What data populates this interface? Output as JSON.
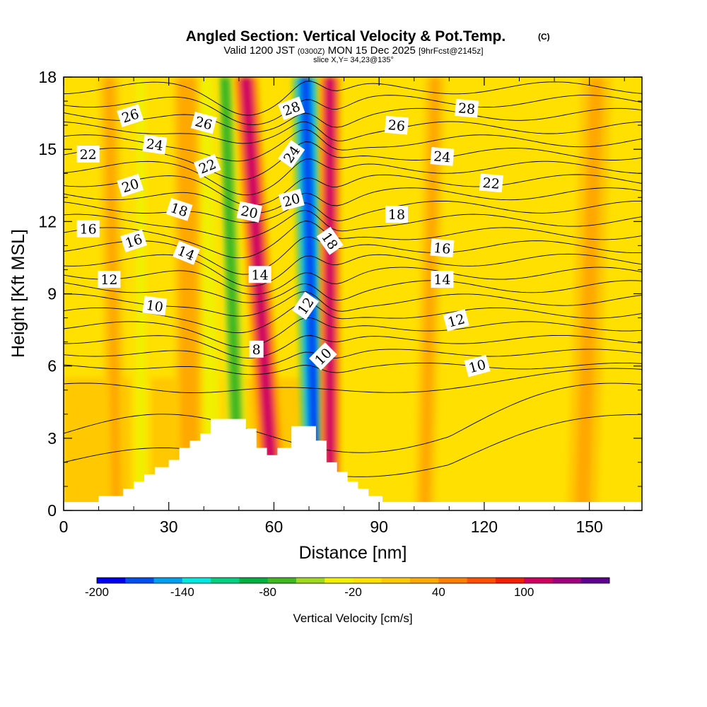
{
  "title": {
    "main": "Angled Section: Vertical Velocity & Pot.Temp.",
    "main_unit": "(C)",
    "valid": "Valid 1200 JST",
    "valid_z": "(0300Z)",
    "date": "MON 15 Dec 2025",
    "fcst": "[9hrFcst@2145z]",
    "slice": "slice X,Y= 34,23@135°"
  },
  "chart_data": {
    "type": "heatmap",
    "xlabel": "Distance [nm]",
    "ylabel": "Height [Kft MSL]",
    "xlim": [
      0,
      165
    ],
    "ylim": [
      0,
      18
    ],
    "xticks": [
      0,
      30,
      60,
      90,
      120,
      150
    ],
    "yticks": [
      0,
      3,
      6,
      9,
      12,
      15,
      18
    ],
    "colorbar": {
      "label": "Vertical Velocity [cm/s]",
      "levels": [
        -200,
        -180,
        -160,
        -140,
        -120,
        -100,
        -80,
        -60,
        -40,
        -20,
        0,
        20,
        40,
        60,
        80,
        100,
        120,
        140
      ],
      "colors": [
        "#0000f0",
        "#0050f0",
        "#00a0f0",
        "#00e8e0",
        "#00d080",
        "#00b040",
        "#40b820",
        "#a0d820",
        "#f0f000",
        "#ffe000",
        "#ffc800",
        "#ffa800",
        "#ff8000",
        "#ff5000",
        "#f02000",
        "#d00060",
        "#a00080",
        "#600090"
      ],
      "tick_labels": [
        "-200",
        "-140",
        "-80",
        "-20",
        "40",
        "100"
      ],
      "tick_values": [
        -200,
        -140,
        -80,
        -20,
        40,
        100
      ]
    },
    "terrain": [
      [
        0,
        0.35
      ],
      [
        10,
        0.35
      ],
      [
        10,
        0.6
      ],
      [
        17,
        0.6
      ],
      [
        17,
        0.9
      ],
      [
        20,
        0.9
      ],
      [
        20,
        1.2
      ],
      [
        23,
        1.2
      ],
      [
        23,
        1.5
      ],
      [
        26,
        1.5
      ],
      [
        26,
        1.8
      ],
      [
        30,
        1.8
      ],
      [
        30,
        2.1
      ],
      [
        33,
        2.1
      ],
      [
        33,
        2.6
      ],
      [
        36,
        2.6
      ],
      [
        36,
        2.9
      ],
      [
        39,
        2.9
      ],
      [
        39,
        3.2
      ],
      [
        42,
        3.2
      ],
      [
        42,
        3.8
      ],
      [
        52,
        3.8
      ],
      [
        52,
        3.4
      ],
      [
        55,
        3.4
      ],
      [
        55,
        2.6
      ],
      [
        58,
        2.6
      ],
      [
        58,
        2.3
      ],
      [
        61,
        2.3
      ],
      [
        61,
        2.6
      ],
      [
        65,
        2.6
      ],
      [
        65,
        3.5
      ],
      [
        72,
        3.5
      ],
      [
        72,
        2.9
      ],
      [
        75,
        2.9
      ],
      [
        75,
        2.0
      ],
      [
        78,
        2.0
      ],
      [
        78,
        1.6
      ],
      [
        81,
        1.6
      ],
      [
        81,
        1.2
      ],
      [
        84,
        1.2
      ],
      [
        84,
        0.9
      ],
      [
        87,
        0.9
      ],
      [
        87,
        0.6
      ],
      [
        91,
        0.6
      ],
      [
        91,
        0.35
      ],
      [
        165,
        0.35
      ]
    ],
    "updrafts": [
      {
        "x_bottom": 60,
        "x_top": 52,
        "value": 100,
        "width": 7
      },
      {
        "x_bottom": 76,
        "x_top": 76,
        "value": 100,
        "width": 6
      },
      {
        "x_bottom": 36,
        "x_top": 35,
        "value": 30,
        "width": 8
      },
      {
        "x_bottom": 15,
        "x_top": 13,
        "value": 20,
        "width": 6
      },
      {
        "x_bottom": 103,
        "x_top": 106,
        "value": 25,
        "width": 6
      },
      {
        "x_bottom": 148,
        "x_top": 152,
        "value": 25,
        "width": 9
      }
    ],
    "downdrafts": [
      {
        "x_bottom": 72,
        "x_top": 69,
        "value": -180,
        "width": 8
      },
      {
        "x_bottom": 50,
        "x_top": 46,
        "value": -80,
        "width": 7
      },
      {
        "x_bottom": 42,
        "x_top": 40,
        "value": -40,
        "width": 8
      },
      {
        "x_bottom": 22,
        "x_top": 22,
        "value": -25,
        "width": 6
      },
      {
        "x_bottom": 95,
        "x_top": 98,
        "value": -15,
        "width": 8
      }
    ],
    "theta_levels": [
      8,
      9,
      10,
      11,
      12,
      13,
      14,
      15,
      16,
      17,
      18,
      19,
      20,
      21,
      22,
      23,
      24,
      25,
      26,
      27,
      28,
      29,
      30
    ],
    "contour_labels": [
      {
        "text": "26",
        "x": 19,
        "y": 16.4,
        "angle": 18
      },
      {
        "text": "26",
        "x": 40,
        "y": 16.1,
        "angle": -15
      },
      {
        "text": "28",
        "x": 65,
        "y": 16.7,
        "angle": 20
      },
      {
        "text": "28",
        "x": 115,
        "y": 16.7,
        "angle": -5
      },
      {
        "text": "26",
        "x": 95,
        "y": 16.0,
        "angle": -5
      },
      {
        "text": "22",
        "x": 7,
        "y": 14.8,
        "angle": 0
      },
      {
        "text": "24",
        "x": 26,
        "y": 15.2,
        "angle": -8
      },
      {
        "text": "24",
        "x": 65,
        "y": 14.8,
        "angle": 55
      },
      {
        "text": "24",
        "x": 108,
        "y": 14.7,
        "angle": -5
      },
      {
        "text": "22",
        "x": 41,
        "y": 14.3,
        "angle": 22
      },
      {
        "text": "22",
        "x": 122,
        "y": 13.6,
        "angle": -5
      },
      {
        "text": "20",
        "x": 19,
        "y": 13.5,
        "angle": 18
      },
      {
        "text": "20",
        "x": 53,
        "y": 12.4,
        "angle": -12
      },
      {
        "text": "20",
        "x": 65,
        "y": 12.9,
        "angle": 15
      },
      {
        "text": "18",
        "x": 33,
        "y": 12.5,
        "angle": -18
      },
      {
        "text": "18",
        "x": 95,
        "y": 12.3,
        "angle": 0
      },
      {
        "text": "18",
        "x": 76,
        "y": 11.2,
        "angle": -55
      },
      {
        "text": "16",
        "x": 7,
        "y": 11.7,
        "angle": 0
      },
      {
        "text": "16",
        "x": 20,
        "y": 11.2,
        "angle": 18
      },
      {
        "text": "16",
        "x": 108,
        "y": 10.9,
        "angle": -5
      },
      {
        "text": "14",
        "x": 35,
        "y": 10.7,
        "angle": -22
      },
      {
        "text": "14",
        "x": 56,
        "y": 9.8,
        "angle": 0
      },
      {
        "text": "14",
        "x": 108,
        "y": 9.6,
        "angle": 0
      },
      {
        "text": "12",
        "x": 13,
        "y": 9.6,
        "angle": 0
      },
      {
        "text": "12",
        "x": 69,
        "y": 8.5,
        "angle": 55
      },
      {
        "text": "12",
        "x": 112,
        "y": 7.9,
        "angle": 15
      },
      {
        "text": "10",
        "x": 26,
        "y": 8.5,
        "angle": -8
      },
      {
        "text": "10",
        "x": 74,
        "y": 6.4,
        "angle": 45
      },
      {
        "text": "10",
        "x": 118,
        "y": 6.0,
        "angle": 15
      },
      {
        "text": "8",
        "x": 55,
        "y": 6.7,
        "angle": 0
      }
    ]
  }
}
